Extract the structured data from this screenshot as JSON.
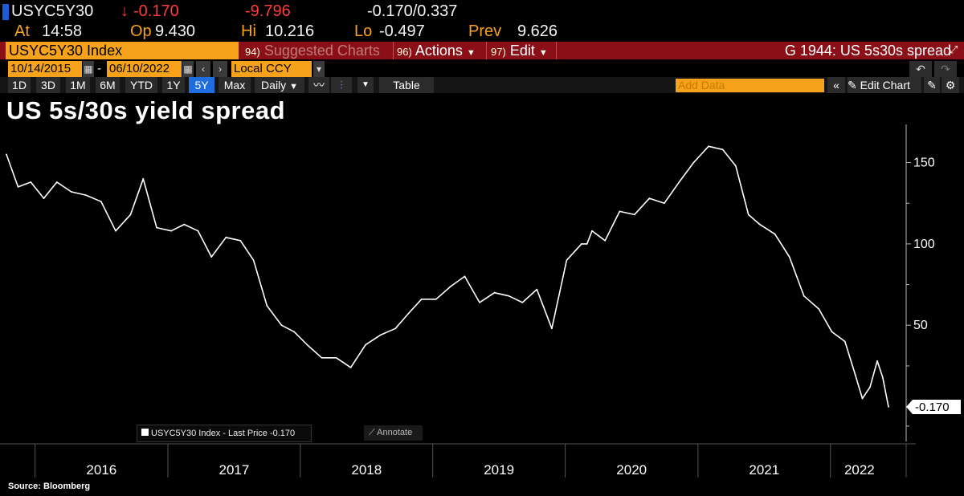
{
  "header": {
    "ticker": "USYC5Y30",
    "change_arrow": "↓",
    "change": "-0.170",
    "pct_change": "-9.796",
    "bid_ask": "-0.170/0.337",
    "at_label": "At",
    "at_time": "14:58",
    "op_label": "Op",
    "op_value": "9.430",
    "hi_label": "Hi",
    "hi_value": "10.216",
    "lo_label": "Lo",
    "lo_value": "-0.497",
    "prev_label": "Prev",
    "prev_value": "9.626"
  },
  "command_bar": {
    "security": "USYC5Y30 Index",
    "suggested_num": "94)",
    "suggested_label": "Suggested Charts",
    "actions_num": "96)",
    "actions_label": "Actions",
    "edit_num": "97)",
    "edit_label": "Edit",
    "graph_title": "G 1944: US 5s30s spread"
  },
  "date_bar": {
    "start_date": "10/14/2015",
    "end_date": "06/10/2022",
    "dash": "-",
    "currency": "Local CCY"
  },
  "period_bar": {
    "periods": [
      "1D",
      "3D",
      "1M",
      "6M",
      "YTD",
      "1Y",
      "5Y",
      "Max"
    ],
    "active_period": "5Y",
    "frequency": "Daily",
    "table_label": "Table",
    "add_data_placeholder": "Add Data",
    "edit_chart_label": "Edit Chart"
  },
  "chart_title": "US 5s/30s yield spread",
  "source": "Source: Bloomberg",
  "legend_text": "USYC5Y30 Index - Last Price -0.170",
  "annotate_label": "Annotate",
  "colors": {
    "background": "#000000",
    "line": "#ffffff",
    "orange": "#f7a21b",
    "red": "#ff3b3b",
    "command_bar": "#8b0f17"
  },
  "chart_data": {
    "type": "line",
    "title": "US 5s/30s yield spread",
    "series": [
      {
        "name": "USYC5Y30 Index - Last Price",
        "last_value": -0.17,
        "x": [
          "2015-10-14",
          "2015-11-15",
          "2015-12-20",
          "2016-01-25",
          "2016-03-01",
          "2016-04-10",
          "2016-05-20",
          "2016-07-01",
          "2016-08-10",
          "2016-09-20",
          "2016-10-25",
          "2016-12-01",
          "2017-01-10",
          "2017-02-15",
          "2017-03-25",
          "2017-05-01",
          "2017-06-10",
          "2017-07-20",
          "2017-08-25",
          "2017-10-01",
          "2017-11-10",
          "2017-12-15",
          "2018-01-20",
          "2018-03-01",
          "2018-04-10",
          "2018-05-20",
          "2018-06-30",
          "2018-08-10",
          "2018-09-20",
          "2018-10-25",
          "2018-12-01",
          "2019-01-10",
          "2019-02-20",
          "2019-03-30",
          "2019-05-10",
          "2019-06-20",
          "2019-07-30",
          "2019-09-05",
          "2019-10-15",
          "2019-11-25",
          "2020-01-05",
          "2020-02-15",
          "2020-03-01",
          "2020-03-15",
          "2020-04-20",
          "2020-05-30",
          "2020-07-10",
          "2020-08-20",
          "2020-09-30",
          "2020-11-10",
          "2020-12-20",
          "2021-01-30",
          "2021-03-10",
          "2021-04-15",
          "2021-05-20",
          "2021-06-20",
          "2021-08-01",
          "2021-09-10",
          "2021-10-20",
          "2021-11-30",
          "2022-01-05",
          "2022-02-10",
          "2022-03-10",
          "2022-03-30",
          "2022-04-20",
          "2022-05-10",
          "2022-05-25",
          "2022-06-10"
        ],
        "values": [
          155,
          135,
          138,
          128,
          138,
          132,
          130,
          126,
          108,
          118,
          140,
          110,
          108,
          112,
          108,
          92,
          104,
          102,
          90,
          62,
          50,
          46,
          38,
          30,
          30,
          24,
          38,
          44,
          48,
          57,
          66,
          66,
          74,
          80,
          64,
          70,
          68,
          64,
          72,
          48,
          90,
          100,
          100,
          108,
          102,
          120,
          118,
          128,
          125,
          138,
          150,
          160,
          158,
          148,
          118,
          112,
          106,
          92,
          68,
          60,
          46,
          40,
          20,
          5,
          12,
          28,
          18,
          -0.17
        ]
      }
    ],
    "yticks": [
      50,
      100,
      150
    ],
    "xticks": [
      "2016",
      "2017",
      "2018",
      "2019",
      "2020",
      "2021",
      "2022"
    ],
    "ylim": [
      -15,
      170
    ],
    "axis_position": "right",
    "grid": false,
    "legend_position": "bottom-left"
  }
}
